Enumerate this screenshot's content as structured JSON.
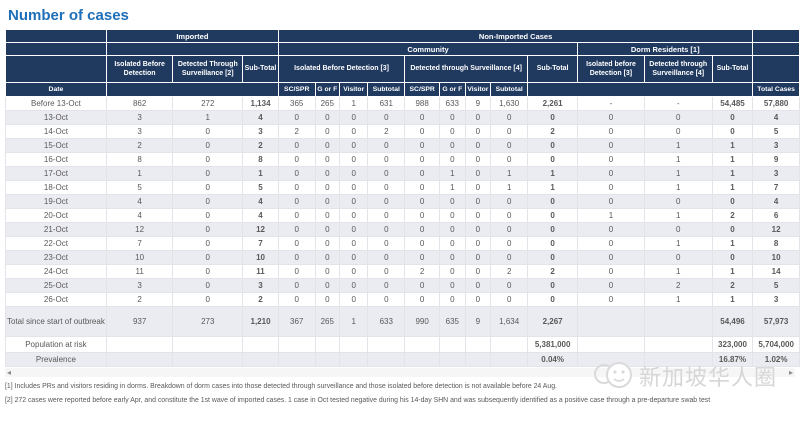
{
  "title": "Number of cases",
  "colors": {
    "title_blue": "#1e6fb8",
    "header_navy": "#20395f",
    "stripe_row": "#ebebf2",
    "text_grey": "#595959"
  },
  "table": {
    "header": {
      "date": "Date",
      "imported": "Imported",
      "non_imported": "Non-Imported Cases",
      "community": "Community",
      "dorm": "Dorm Residents [1]",
      "imp_isolated": "Isolated Before Detection",
      "imp_detected": "Detected Through Surveillance [2]",
      "sub_total": "Sub-Total",
      "comm_isolated": "Isolated Before Detection [3]",
      "comm_detected": "Detected through Surveillance [4]",
      "dorm_isolated": "Isolated before Detection [3]",
      "dorm_detected": "Detected through Surveillance [4]",
      "sc_spr": "SC/SPR",
      "g_or_f": "G or F",
      "visitor": "Visitor",
      "subtotal": "Subtotal",
      "total_cases": "Total Cases"
    },
    "rows": [
      {
        "type": "data",
        "label": "Before 13-Oct",
        "cells": [
          "862",
          "272",
          "1,134",
          "365",
          "265",
          "1",
          "631",
          "988",
          "633",
          "9",
          "1,630",
          "2,261",
          "-",
          "-",
          "54,485",
          "57,880"
        ]
      },
      {
        "type": "data",
        "label": "13-Oct",
        "cells": [
          "3",
          "1",
          "4",
          "0",
          "0",
          "0",
          "0",
          "0",
          "0",
          "0",
          "0",
          "0",
          "0",
          "0",
          "0",
          "4"
        ]
      },
      {
        "type": "data",
        "label": "14-Oct",
        "cells": [
          "3",
          "0",
          "3",
          "2",
          "0",
          "0",
          "2",
          "0",
          "0",
          "0",
          "0",
          "2",
          "0",
          "0",
          "0",
          "5"
        ]
      },
      {
        "type": "data",
        "label": "15-Oct",
        "cells": [
          "2",
          "0",
          "2",
          "0",
          "0",
          "0",
          "0",
          "0",
          "0",
          "0",
          "0",
          "0",
          "0",
          "1",
          "1",
          "3"
        ]
      },
      {
        "type": "data",
        "label": "16-Oct",
        "cells": [
          "8",
          "0",
          "8",
          "0",
          "0",
          "0",
          "0",
          "0",
          "0",
          "0",
          "0",
          "0",
          "0",
          "1",
          "1",
          "9"
        ]
      },
      {
        "type": "data",
        "label": "17-Oct",
        "cells": [
          "1",
          "0",
          "1",
          "0",
          "0",
          "0",
          "0",
          "0",
          "1",
          "0",
          "1",
          "1",
          "0",
          "1",
          "1",
          "3"
        ]
      },
      {
        "type": "data",
        "label": "18-Oct",
        "cells": [
          "5",
          "0",
          "5",
          "0",
          "0",
          "0",
          "0",
          "0",
          "1",
          "0",
          "1",
          "1",
          "0",
          "1",
          "1",
          "7"
        ]
      },
      {
        "type": "data",
        "label": "19-Oct",
        "cells": [
          "4",
          "0",
          "4",
          "0",
          "0",
          "0",
          "0",
          "0",
          "0",
          "0",
          "0",
          "0",
          "0",
          "0",
          "0",
          "4"
        ]
      },
      {
        "type": "data",
        "label": "20-Oct",
        "cells": [
          "4",
          "0",
          "4",
          "0",
          "0",
          "0",
          "0",
          "0",
          "0",
          "0",
          "0",
          "0",
          "1",
          "1",
          "2",
          "6"
        ]
      },
      {
        "type": "data",
        "label": "21-Oct",
        "cells": [
          "12",
          "0",
          "12",
          "0",
          "0",
          "0",
          "0",
          "0",
          "0",
          "0",
          "0",
          "0",
          "0",
          "0",
          "0",
          "12"
        ]
      },
      {
        "type": "data",
        "label": "22-Oct",
        "cells": [
          "7",
          "0",
          "7",
          "0",
          "0",
          "0",
          "0",
          "0",
          "0",
          "0",
          "0",
          "0",
          "0",
          "1",
          "1",
          "8"
        ]
      },
      {
        "type": "data",
        "label": "23-Oct",
        "cells": [
          "10",
          "0",
          "10",
          "0",
          "0",
          "0",
          "0",
          "0",
          "0",
          "0",
          "0",
          "0",
          "0",
          "0",
          "0",
          "10"
        ]
      },
      {
        "type": "data",
        "label": "24-Oct",
        "cells": [
          "11",
          "0",
          "11",
          "0",
          "0",
          "0",
          "0",
          "2",
          "0",
          "0",
          "2",
          "2",
          "0",
          "1",
          "1",
          "14"
        ]
      },
      {
        "type": "data",
        "label": "25-Oct",
        "cells": [
          "3",
          "0",
          "3",
          "0",
          "0",
          "0",
          "0",
          "0",
          "0",
          "0",
          "0",
          "0",
          "0",
          "2",
          "2",
          "5"
        ]
      },
      {
        "type": "data",
        "label": "26-Oct",
        "cells": [
          "2",
          "0",
          "2",
          "0",
          "0",
          "0",
          "0",
          "0",
          "0",
          "0",
          "0",
          "0",
          "0",
          "1",
          "1",
          "3"
        ]
      },
      {
        "type": "total",
        "label": "Total since start of outbreak",
        "cells": [
          "937",
          "273",
          "1,210",
          "367",
          "265",
          "1",
          "633",
          "990",
          "635",
          "9",
          "1,634",
          "2,267",
          "",
          "",
          "54,496",
          "57,973"
        ]
      },
      {
        "type": "population",
        "label": "Population at risk",
        "cells": [
          "",
          "",
          "",
          "",
          "",
          "",
          "",
          "",
          "",
          "",
          "",
          "5,381,000",
          "",
          "",
          "323,000",
          "5,704,000"
        ]
      },
      {
        "type": "prevalence",
        "label": "Prevalence",
        "cells": [
          "",
          "",
          "",
          "",
          "",
          "",
          "",
          "",
          "",
          "",
          "",
          "0.04%",
          "",
          "",
          "16.87%",
          "1.02%"
        ]
      }
    ]
  },
  "scrollbar": {
    "left_arrow": "◂",
    "right_arrow": "▸"
  },
  "footnotes": [
    "[1] Includes PRs and visitors residing in dorms. Breakdown of dorm cases into those detected through surveillance and those isolated before detection is not available before 24 Aug.",
    "[2] 272 cases were reported before early Apr, and constitute the 1st wave of imported cases. 1 case in Oct tested negative during his 14-day SHN and was subsequently identified as a positive case through a pre-departure swab test"
  ],
  "watermark": {
    "text": "新加坡华人圈",
    "icon": "faces-logo-icon"
  }
}
